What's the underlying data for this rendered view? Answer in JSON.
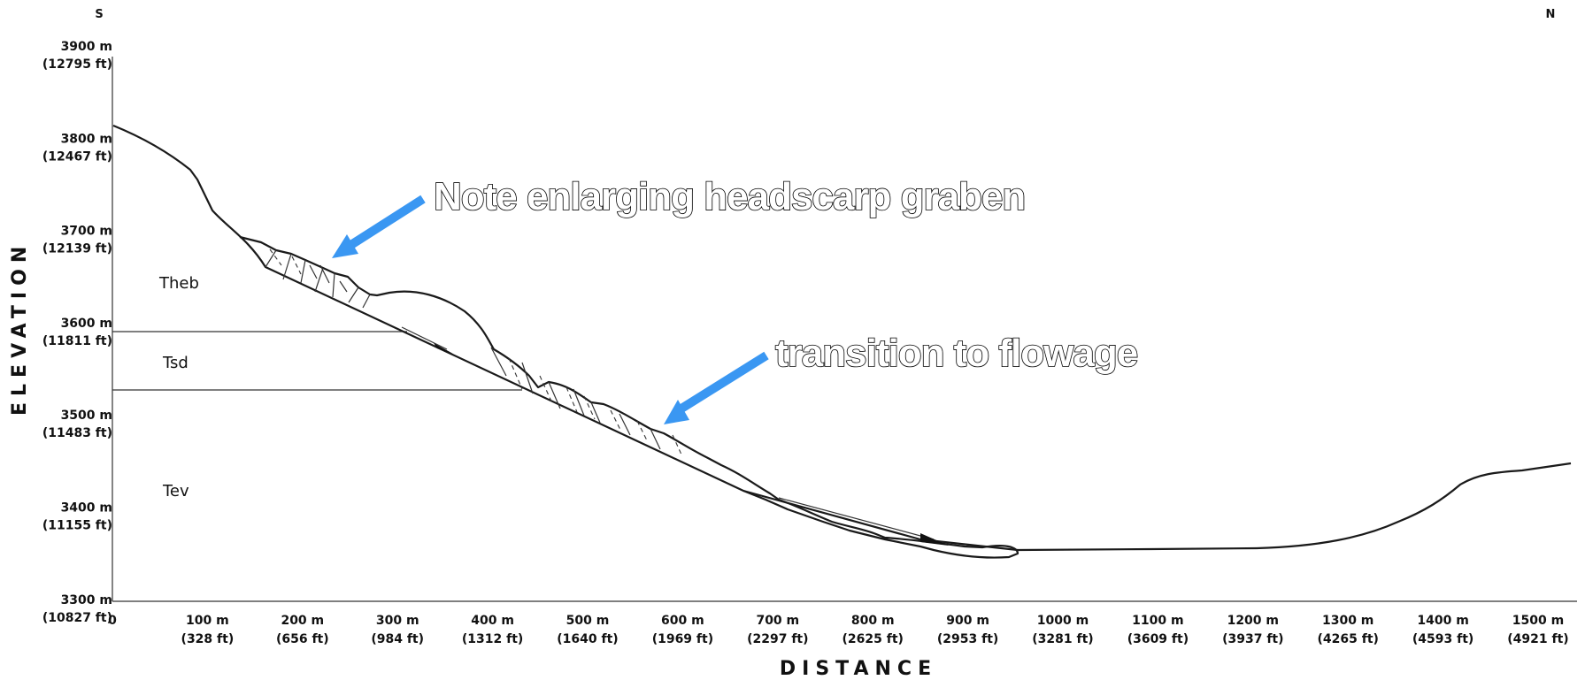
{
  "directions": {
    "left": "S",
    "right": "N"
  },
  "axes": {
    "y_title": "ELEVATION",
    "x_title": "DISTANCE",
    "y_ticks": [
      {
        "m": "3900 m",
        "ft": "(12795 ft)"
      },
      {
        "m": "3800 m",
        "ft": "(12467 ft)"
      },
      {
        "m": "3700 m",
        "ft": "(12139 ft)"
      },
      {
        "m": "3600 m",
        "ft": "(11811 ft)"
      },
      {
        "m": "3500 m",
        "ft": "(11483 ft)"
      },
      {
        "m": "3400 m",
        "ft": "(11155 ft)"
      },
      {
        "m": "3300 m",
        "ft": "(10827 ft)"
      }
    ],
    "x_ticks": [
      {
        "m": "0",
        "ft": ""
      },
      {
        "m": "100 m",
        "ft": "(328 ft)"
      },
      {
        "m": "200 m",
        "ft": "(656 ft)"
      },
      {
        "m": "300 m",
        "ft": "(984 ft)"
      },
      {
        "m": "400 m",
        "ft": "(1312 ft)"
      },
      {
        "m": "500 m",
        "ft": "(1640 ft)"
      },
      {
        "m": "600 m",
        "ft": "(1969 ft)"
      },
      {
        "m": "700 m",
        "ft": "(2297 ft)"
      },
      {
        "m": "800 m",
        "ft": "(2625 ft)"
      },
      {
        "m": "900 m",
        "ft": "(2953 ft)"
      },
      {
        "m": "1000 m",
        "ft": "(3281 ft)"
      },
      {
        "m": "1100 m",
        "ft": "(3609 ft)"
      },
      {
        "m": "1200 m",
        "ft": "(3937 ft)"
      },
      {
        "m": "1300 m",
        "ft": "(4265 ft)"
      },
      {
        "m": "1400 m",
        "ft": "(4593 ft)"
      },
      {
        "m": "1500 m",
        "ft": "(4921 ft)"
      }
    ]
  },
  "units": {
    "theb": "Theb",
    "tsd": "Tsd",
    "tev": "Tev"
  },
  "annotations": {
    "headscarp": "Note enlarging headscarp graben",
    "flowage": "transition to flowage"
  },
  "colors": {
    "arrow": "#3a97f2",
    "line": "#1a1a1a"
  }
}
